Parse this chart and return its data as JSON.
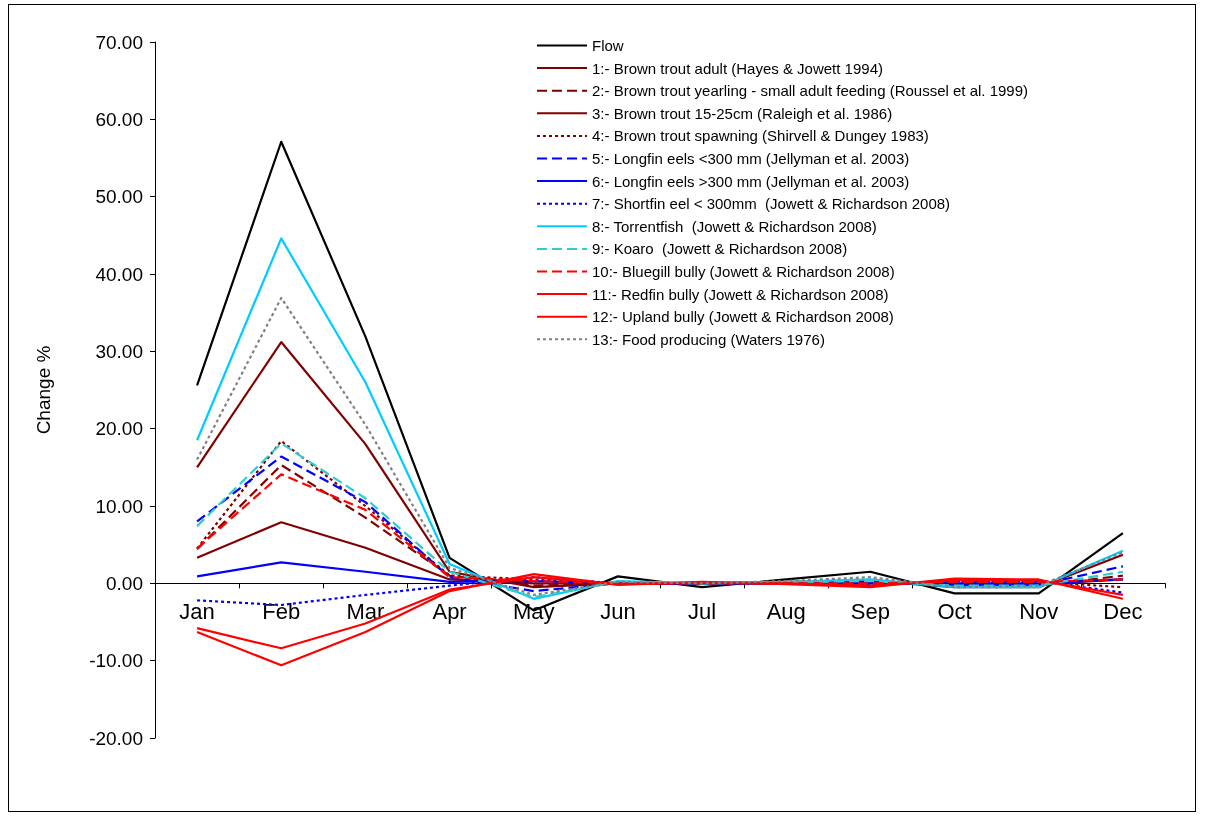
{
  "chart_data": {
    "type": "line",
    "ylabel": "Change %",
    "categories": [
      "Jan",
      "Feb",
      "Mar",
      "Apr",
      "May",
      "Jun",
      "Jul",
      "Aug",
      "Sep",
      "Oct",
      "Nov",
      "Dec"
    ],
    "ylim": [
      -20,
      70
    ],
    "yticks": [
      {
        "value": -20,
        "label": "-20.00"
      },
      {
        "value": -10,
        "label": "-10.00"
      },
      {
        "value": 0,
        "label": "0.00"
      },
      {
        "value": 10,
        "label": "10.00"
      },
      {
        "value": 20,
        "label": "20.00"
      },
      {
        "value": 30,
        "label": "30.00"
      },
      {
        "value": 40,
        "label": "40.00"
      },
      {
        "value": 50,
        "label": "50.00"
      },
      {
        "value": 60,
        "label": "60.00"
      },
      {
        "value": 70,
        "label": "70.00"
      }
    ],
    "legend": "top right",
    "marker": "none",
    "series": [
      {
        "name": "Flow",
        "color": "#000000",
        "line_style": "solid",
        "values": [
          25.6,
          57.1,
          31.9,
          3.3,
          -3.5,
          0.9,
          -0.5,
          0.5,
          1.5,
          -1.3,
          -1.3,
          6.5
        ]
      },
      {
        "name": "1:- Brown trout adult (Hayes & Jowett 1994)",
        "color": "#800000",
        "line_style": "solid",
        "values": [
          15.0,
          31.2,
          18.0,
          1.5,
          -0.5,
          0.0,
          0.0,
          0.2,
          0.3,
          -0.5,
          -0.5,
          3.7
        ]
      },
      {
        "name": "2:- Brown trout yearling - small adult feeding (Roussel et al. 1999)",
        "color": "#800000",
        "line_style": "dashed",
        "values": [
          4.4,
          15.3,
          8.5,
          1.0,
          -0.3,
          0.0,
          0.0,
          0.1,
          0.2,
          -0.3,
          -0.3,
          1.0
        ]
      },
      {
        "name": "3:- Brown trout 15-25cm (Raleigh et al. 1986)",
        "color": "#800000",
        "line_style": "solid",
        "values": [
          3.3,
          7.9,
          4.6,
          0.5,
          0.0,
          0.0,
          0.0,
          0.0,
          0.1,
          -0.1,
          -0.1,
          0.5
        ]
      },
      {
        "name": "4:- Brown trout spawning (Shirvell & Dungey 1983)",
        "color": "#800000",
        "line_style": "dotted",
        "values": [
          4.5,
          18.4,
          10.0,
          1.0,
          0.5,
          0.0,
          0.0,
          0.0,
          0.0,
          0.2,
          0.2,
          -0.5
        ]
      },
      {
        "name": "5:- Longfin eels <300 mm (Jellyman et al. 2003)",
        "color": "#0000ff",
        "line_style": "dashed",
        "values": [
          8.0,
          16.4,
          10.5,
          0.8,
          -1.0,
          0.0,
          0.0,
          0.1,
          0.2,
          -0.2,
          -0.2,
          2.2
        ]
      },
      {
        "name": "6:- Longfin eels >300 mm (Jellyman et al. 2003)",
        "color": "#0000ff",
        "line_style": "solid",
        "values": [
          0.9,
          2.7,
          1.5,
          0.2,
          0.3,
          0.0,
          0.0,
          0.0,
          0.0,
          0.0,
          0.0,
          0.5
        ]
      },
      {
        "name": "7:- Shortfin eel < 300mm  (Jowett & Richardson 2008)",
        "color": "#0000ff",
        "line_style": "dotted",
        "values": [
          -2.2,
          -2.8,
          -1.5,
          -0.3,
          0.8,
          0.0,
          0.0,
          0.0,
          -0.2,
          0.3,
          0.3,
          -1.2
        ]
      },
      {
        "name": "8:- Torrentfish  (Jowett & Richardson 2008)",
        "color": "#00ccff",
        "line_style": "solid",
        "values": [
          18.5,
          44.6,
          26.0,
          2.5,
          -2.0,
          0.3,
          0.0,
          0.2,
          0.5,
          -0.5,
          -0.5,
          4.2
        ]
      },
      {
        "name": "9:- Koaro  (Jowett & Richardson 2008)",
        "color": "#33cccc",
        "line_style": "dashed",
        "values": [
          7.4,
          18.1,
          11.0,
          1.5,
          -1.8,
          0.2,
          0.0,
          0.1,
          0.3,
          -0.3,
          -0.3,
          1.5
        ]
      },
      {
        "name": "10:- Bluegill bully (Jowett & Richardson 2008)",
        "color": "#ff0000",
        "line_style": "dashed",
        "values": [
          4.5,
          14.1,
          9.5,
          0.8,
          0.3,
          0.0,
          0.0,
          0.0,
          0.0,
          0.2,
          0.2,
          0.5
        ]
      },
      {
        "name": "11:- Redfin bully (Jowett & Richardson 2008)",
        "color": "#ff0000",
        "line_style": "solid",
        "values": [
          -5.8,
          -8.4,
          -5.2,
          -0.8,
          0.8,
          -0.1,
          0.1,
          0.0,
          -0.3,
          0.4,
          0.4,
          -1.5
        ]
      },
      {
        "name": "12:- Upland bully (Jowett & Richardson 2008)",
        "color": "#ff0000",
        "line_style": "solid",
        "values": [
          -6.3,
          -10.6,
          -6.3,
          -1.0,
          1.2,
          -0.2,
          0.2,
          -0.1,
          -0.5,
          0.6,
          0.5,
          -2.0
        ]
      },
      {
        "name": "13:- Food producing (Waters 1976)",
        "color": "#808080",
        "line_style": "dotted",
        "values": [
          16.0,
          36.9,
          20.5,
          2.0,
          -1.5,
          0.2,
          0.0,
          0.3,
          0.8,
          -0.5,
          -0.3,
          4.0
        ]
      }
    ]
  }
}
